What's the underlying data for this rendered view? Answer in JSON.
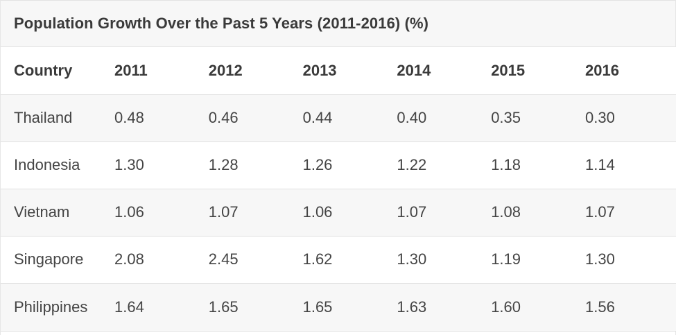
{
  "title": "Population Growth Over the Past 5 Years (2011-2016) (%)",
  "columns": [
    "Country",
    "2011",
    "2012",
    "2013",
    "2014",
    "2015",
    "2016"
  ],
  "rows": [
    {
      "country": "Thailand",
      "values": [
        "0.48",
        "0.46",
        "0.44",
        "0.40",
        "0.35",
        "0.30"
      ]
    },
    {
      "country": "Indonesia",
      "values": [
        "1.30",
        "1.28",
        "1.26",
        "1.22",
        "1.18",
        "1.14"
      ]
    },
    {
      "country": "Vietnam",
      "values": [
        "1.06",
        "1.07",
        "1.06",
        "1.07",
        "1.08",
        "1.07"
      ]
    },
    {
      "country": "Singapore",
      "values": [
        "2.08",
        "2.45",
        "1.62",
        "1.30",
        "1.19",
        "1.30"
      ]
    },
    {
      "country": "Philippines",
      "values": [
        "1.64",
        "1.65",
        "1.65",
        "1.63",
        "1.60",
        "1.56"
      ]
    }
  ],
  "colors": {
    "stripe": "#f7f7f7",
    "border": "#e0e0e0",
    "text": "#444444",
    "header_text": "#3a3a3a"
  }
}
